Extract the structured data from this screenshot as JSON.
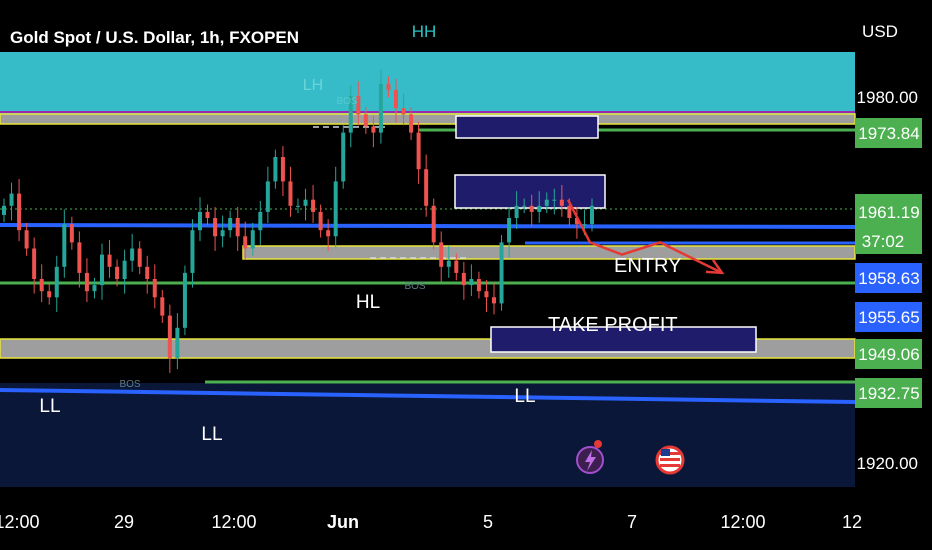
{
  "header": {
    "symbol_title": "Gold Spot / U.S. Dollar, 1h, FXOPEN",
    "currency": "USD"
  },
  "colors": {
    "background": "#000000",
    "upper_zone": "#36bcc9",
    "lower_zone": "#0a1738",
    "up_candle": "#26a69a",
    "down_candle": "#ef5350",
    "level_line": "#4caf50",
    "trend_line": "#2962ff",
    "box_fill": "#1f1d6b",
    "arrow": "#e53935",
    "price_badge": "#4caf50",
    "price_badge_blue": "#2962ff"
  },
  "price_scale": {
    "ticks": [
      "1980.00",
      "1920.00"
    ],
    "badges": [
      {
        "label": "1973.84",
        "color": "green"
      },
      {
        "label": "1961.19",
        "color": "green"
      },
      {
        "label": "37:02",
        "color": "green"
      },
      {
        "label": "1958.63",
        "color": "blue"
      },
      {
        "label": "1955.65",
        "color": "blue"
      },
      {
        "label": "1949.06",
        "color": "green"
      },
      {
        "label": "1932.75",
        "color": "green"
      }
    ]
  },
  "time_axis": {
    "labels": [
      "12:00",
      "29",
      "12:00",
      "Jun",
      "5",
      "7",
      "12:00",
      "12"
    ]
  },
  "annotations": {
    "hh": "HH",
    "lh": "LH",
    "hl": "HL",
    "ll_left": "LL",
    "ll_bottom": "LL",
    "ll_right": "LL",
    "bos_top": "BOS",
    "bos_mid": "BOS",
    "bos_left": "BOS",
    "entry": "ENTRY",
    "take_profit": "TAKE PROFIT"
  },
  "chart_data": {
    "type": "candlestick",
    "title": "Gold Spot / U.S. Dollar, 1h, FXOPEN",
    "ylabel": "USD",
    "ylim": [
      1915,
      1995
    ],
    "x_ticks": [
      "12:00",
      "29",
      "12:00",
      "Jun",
      "5",
      "7",
      "12:00",
      "12"
    ],
    "y_ticks": [
      1920.0,
      1980.0
    ],
    "key_levels": [
      1973.84,
      1961.19,
      1958.63,
      1955.65,
      1949.06,
      1932.75
    ],
    "close_path": [
      1962,
      1964,
      1958,
      1955,
      1950,
      1948,
      1947,
      1952,
      1959,
      1956,
      1951,
      1948,
      1949,
      1954,
      1952,
      1950,
      1953,
      1955,
      1952,
      1950,
      1947,
      1944,
      1937,
      1942,
      1951,
      1958,
      1961,
      1960,
      1957,
      1958,
      1960,
      1957,
      1955,
      1958,
      1961,
      1966,
      1970,
      1966,
      1962,
      1962,
      1963,
      1961,
      1958,
      1957,
      1966,
      1974,
      1980,
      1977,
      1975,
      1974,
      1982,
      1981,
      1978,
      1977,
      1974,
      1968,
      1962,
      1956,
      1952,
      1953,
      1951,
      1949,
      1950,
      1948,
      1947,
      1946,
      1956,
      1960,
      1962,
      1962,
      1961,
      1962,
      1963,
      1963,
      1962,
      1960,
      1959,
      1959,
      1962
    ],
    "projection": {
      "entry_label": "ENTRY",
      "target_label": "TAKE PROFIT",
      "path": [
        1963,
        1956,
        1954,
        1956,
        1951
      ]
    }
  }
}
